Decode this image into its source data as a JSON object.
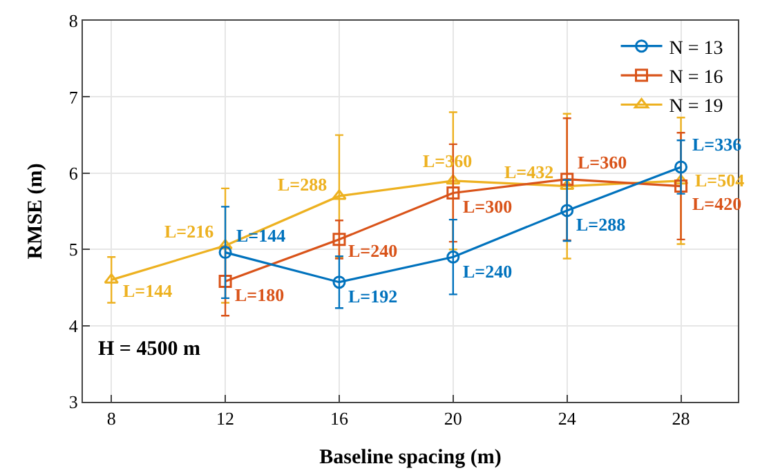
{
  "chart_data": {
    "type": "line",
    "xlabel": "Baseline spacing (m)",
    "ylabel": "RMSE (m)",
    "xlim": [
      7,
      30
    ],
    "xticks": [
      8,
      12,
      16,
      20,
      24,
      28
    ],
    "ylim": [
      3,
      8
    ],
    "yticks": [
      3,
      4,
      5,
      6,
      7,
      8
    ],
    "grid": true,
    "legend": "top right",
    "line_style": "solid",
    "annotations": [
      "H = 4500 m",
      {
        "text": "L=144",
        "x": 12,
        "y": 4.96
      },
      {
        "text": "L=192",
        "x": 16,
        "y": 4.57
      },
      {
        "text": "L=240",
        "x": 20,
        "y": 4.9
      },
      {
        "text": "L=288",
        "x": 24,
        "y": 5.51
      },
      {
        "text": "L=336",
        "x": 28,
        "y": 6.08
      },
      {
        "text": "L=180",
        "x": 12,
        "y": 4.58
      },
      {
        "text": "L=240",
        "x": 16,
        "y": 5.13
      },
      {
        "text": "L=300",
        "x": 20,
        "y": 5.74
      },
      {
        "text": "L=360",
        "x": 24,
        "y": 5.92
      },
      {
        "text": "L=420",
        "x": 28,
        "y": 5.83
      },
      {
        "text": "L=144",
        "x": 8,
        "y": 4.6
      },
      {
        "text": "L=216",
        "x": 12,
        "y": 5.05
      },
      {
        "text": "L=288",
        "x": 16,
        "y": 5.7
      },
      {
        "text": "L=360",
        "x": 20,
        "y": 5.9
      },
      {
        "text": "L=432",
        "x": 24,
        "y": 5.83
      },
      {
        "text": "L=504",
        "x": 28,
        "y": 5.9
      }
    ],
    "series": [
      {
        "name": "N = 13",
        "color": "#0072bd",
        "marker": "circle",
        "x": [
          12,
          16,
          20,
          24,
          28
        ],
        "values": [
          4.96,
          4.57,
          4.9,
          5.51,
          6.08
        ],
        "errors": [
          0.6,
          0.34,
          0.49,
          0.4,
          0.35
        ]
      },
      {
        "name": "N = 16",
        "color": "#d95319",
        "marker": "square",
        "x": [
          12,
          16,
          20,
          24,
          28
        ],
        "values": [
          4.58,
          5.13,
          5.74,
          5.92,
          5.83
        ],
        "errors": [
          0.45,
          0.25,
          0.64,
          0.8,
          0.7
        ]
      },
      {
        "name": "N = 19",
        "color": "#edb120",
        "marker": "triangle",
        "x": [
          8,
          12,
          16,
          20,
          24,
          28
        ],
        "values": [
          4.6,
          5.05,
          5.7,
          5.9,
          5.83,
          5.9
        ],
        "errors": [
          0.3,
          0.75,
          0.8,
          0.9,
          0.95,
          0.83
        ]
      }
    ]
  }
}
